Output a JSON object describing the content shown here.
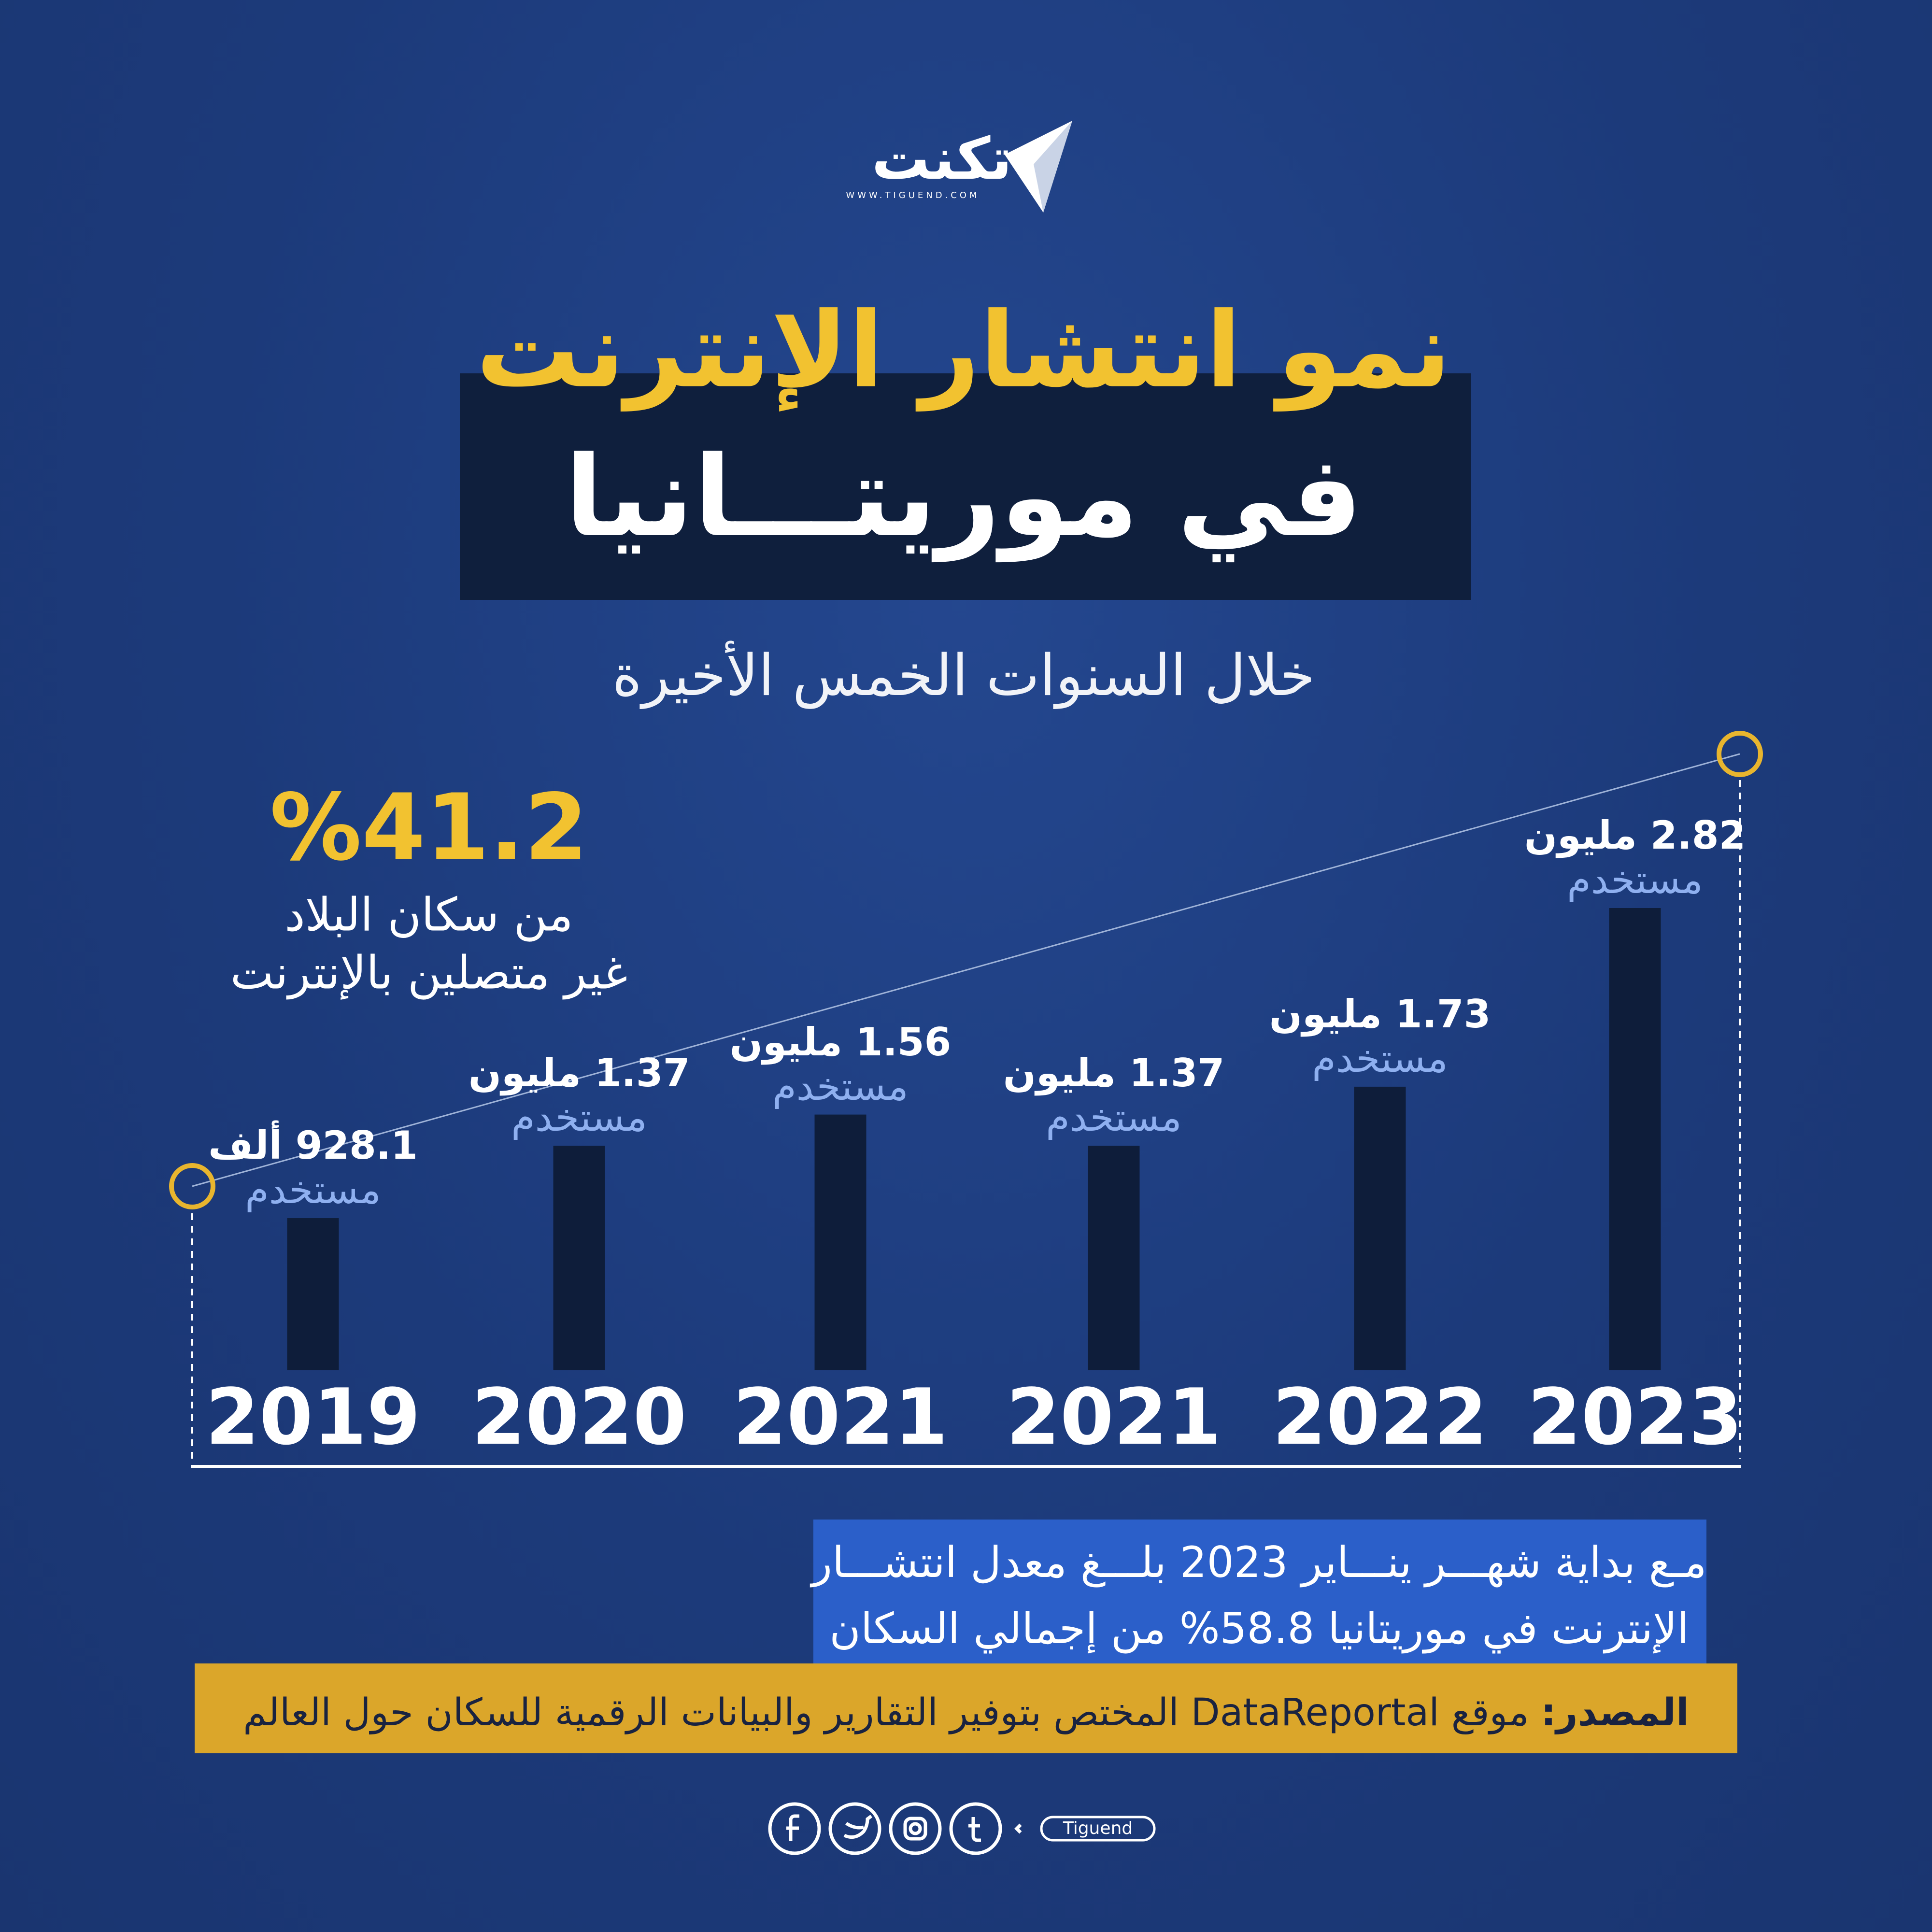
{
  "logo": {
    "name": "تكنت",
    "url": "WWW.TIGUEND.COM"
  },
  "title": {
    "line1": "نمو انتشار الإنترنت",
    "line2": "في موريتـــانيا"
  },
  "subtitle": "خلال السنوات الخمس الأخيرة",
  "stat": {
    "value": "%41.2",
    "line1": "من سكان البلاد",
    "line2": "غير متصلين بالإنترنت"
  },
  "chart_data": {
    "type": "bar",
    "categories": [
      "2019",
      "2020",
      "2021",
      "2021",
      "2022",
      "2023"
    ],
    "values": [
      0.9281,
      1.37,
      1.56,
      1.37,
      1.73,
      2.82
    ],
    "value_labels": [
      "928.1 ألف",
      "1.37 مليون",
      "1.56 مليون",
      "1.37 مليون",
      "1.73 مليون",
      "2.82 مليون"
    ],
    "value_label_unit": "مستخدم",
    "color": "#0e1d3a"
  },
  "note": {
    "line1": "مـع بداية شهـــر ينـــاير 2023 بلـــغ معدل انتشـــار",
    "line2": "الإنترنت في موريتانيا 58.8% من إجمالي السكان"
  },
  "source": {
    "label": "المصدر:",
    "text": "موقع DataReportal المختص بتوفير التقارير والبيانات الرقمية للسكان حول العالم"
  },
  "footer": {
    "handle": "Tiguend"
  }
}
